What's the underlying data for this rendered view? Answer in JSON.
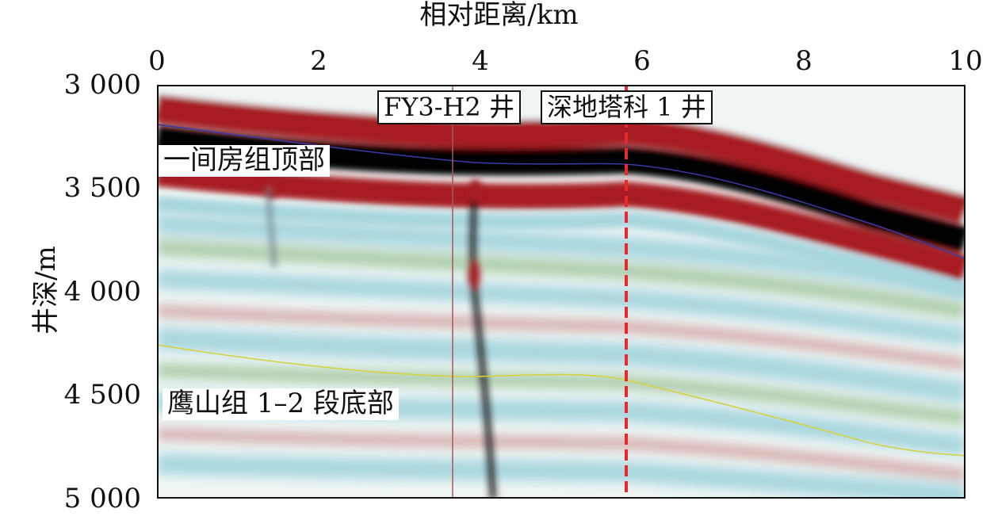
{
  "x_axis": {
    "title": "相对距离/km",
    "ticks": [
      "0",
      "2",
      "4",
      "6",
      "8",
      "10"
    ],
    "range": [
      0,
      10
    ]
  },
  "y_axis": {
    "title": "井深/m",
    "ticks": [
      "3 000",
      "3 500",
      "4 000",
      "4 500",
      "5 000"
    ],
    "range": [
      3000,
      5000
    ]
  },
  "wells": [
    {
      "name": "FY3-H2 井",
      "x_km": 3.65,
      "line_color": "#a15a5a",
      "line_style": "solid"
    },
    {
      "name": "深地塔科 1 井",
      "x_km": 5.8,
      "line_color": "#e8282b",
      "line_style": "dashed"
    }
  ],
  "horizons": [
    {
      "name": "一间房组顶部",
      "line_color": "#3a3aa8"
    },
    {
      "name": "鹰山组 1–2 段底部",
      "line_color": "#d6d23a"
    }
  ],
  "colors": {
    "peak": "#a61e22",
    "trough": "#050505",
    "weak_positive": "#9cc49a",
    "weak_negative": "#a9d7df",
    "background": "#eef5f4"
  }
}
